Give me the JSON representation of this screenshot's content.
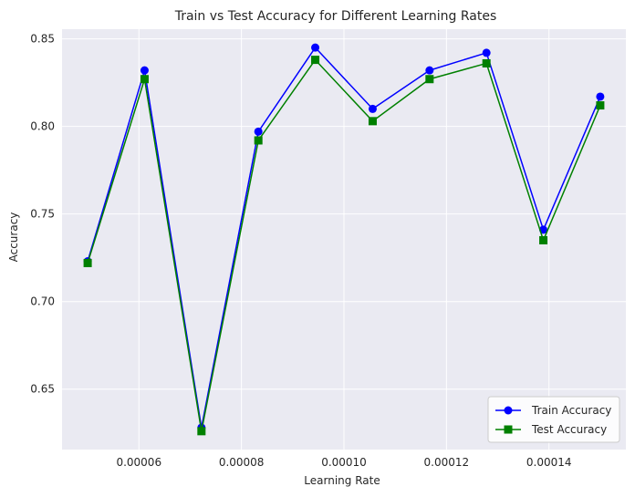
{
  "chart_data": {
    "type": "line",
    "title": "Train vs Test Accuracy for Different Learning Rates",
    "xlabel": "Learning Rate",
    "ylabel": "Accuracy",
    "x": [
      5e-05,
      6.11e-05,
      7.22e-05,
      8.33e-05,
      9.44e-05,
      0.0001056,
      0.0001167,
      0.0001278,
      0.0001389,
      0.00015
    ],
    "series": [
      {
        "name": "Train Accuracy",
        "color": "#0000ff",
        "marker": "circle",
        "values": [
          0.723,
          0.832,
          0.628,
          0.797,
          0.845,
          0.81,
          0.832,
          0.842,
          0.741,
          0.817
        ]
      },
      {
        "name": "Test Accuracy",
        "color": "#008000",
        "marker": "square",
        "values": [
          0.722,
          0.827,
          0.626,
          0.792,
          0.838,
          0.803,
          0.827,
          0.836,
          0.735,
          0.812
        ]
      }
    ],
    "xlim": [
      4.5e-05,
      0.000155
    ],
    "ylim": [
      0.6155,
      0.8555
    ],
    "xticks": [
      6e-05,
      8e-05,
      0.0001,
      0.00012,
      0.00014
    ],
    "xtick_labels": [
      "0.00006",
      "0.00008",
      "0.00010",
      "0.00012",
      "0.00014"
    ],
    "yticks": [
      0.65,
      0.7,
      0.75,
      0.8,
      0.85
    ],
    "ytick_labels": [
      "0.65",
      "0.70",
      "0.75",
      "0.80",
      "0.85"
    ],
    "grid": true,
    "legend_position": "lower-right",
    "background_color": "#eaeaf2",
    "grid_color": "#ffffff"
  }
}
